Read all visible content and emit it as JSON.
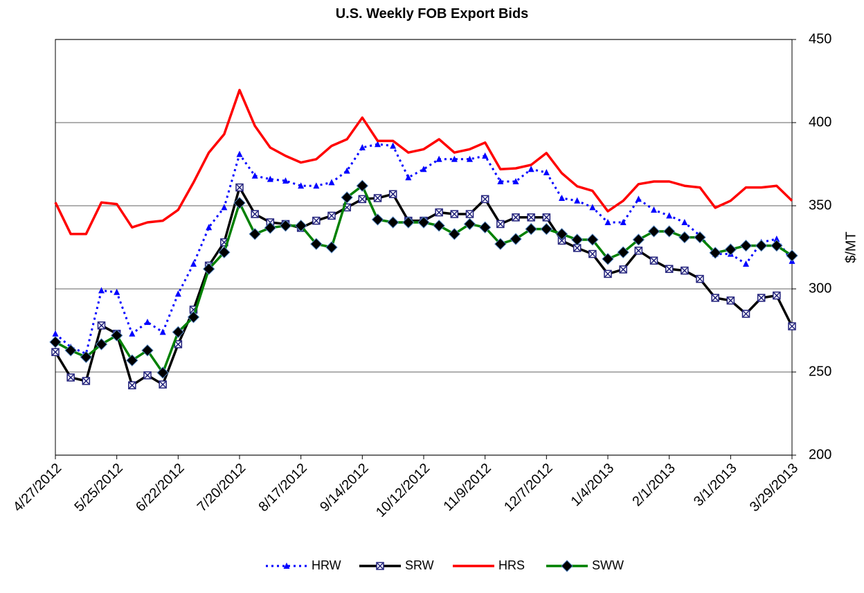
{
  "chart_data": {
    "type": "line",
    "title": "U.S. Weekly FOB Export Bids",
    "y_label": "$/MT",
    "categories": [
      "4/27/2012",
      null,
      null,
      null,
      "5/25/2012",
      null,
      null,
      null,
      "6/22/2012",
      null,
      null,
      null,
      "7/20/2012",
      null,
      null,
      null,
      "8/17/2012",
      null,
      null,
      null,
      "9/14/2012",
      null,
      null,
      null,
      "10/12/2012",
      null,
      null,
      null,
      "11/9/2012",
      null,
      null,
      null,
      "12/7/2012",
      null,
      null,
      null,
      "1/4/2013",
      null,
      null,
      null,
      "2/1/2013",
      null,
      null,
      null,
      "3/1/2013",
      null,
      null,
      null,
      "3/29/2013"
    ],
    "ylim": [
      200,
      450
    ],
    "yticks": [
      200,
      250,
      300,
      350,
      400,
      450
    ],
    "y_axis_side": "right",
    "grid": true,
    "legend": "bottom",
    "series": [
      {
        "name": "HRW",
        "color": "#0000ff",
        "dash": "dotted",
        "marker": "triangle",
        "values": [
          273,
          265,
          261,
          299,
          298,
          273,
          280,
          274,
          297,
          315,
          337,
          349,
          381,
          368,
          366,
          365,
          362,
          362,
          364,
          371,
          385,
          387,
          386,
          367,
          372,
          378,
          378,
          378,
          380,
          364.6,
          364.6,
          372,
          370,
          354.6,
          353,
          349,
          340,
          340,
          354,
          347.5,
          344,
          340,
          332,
          321,
          321,
          315,
          328,
          330,
          316.7
        ]
      },
      {
        "name": "SRW",
        "color": "#000000",
        "dash": "solid",
        "marker": "square-x",
        "values": [
          262,
          246.7,
          244.6,
          278,
          273,
          242,
          248,
          242.5,
          266.7,
          287.5,
          314,
          328,
          361,
          345,
          340,
          339,
          336.7,
          341,
          344,
          349,
          354,
          354.6,
          357,
          341,
          341,
          346,
          345,
          345,
          354,
          339,
          343,
          343,
          343,
          329,
          324.6,
          321,
          309,
          311.7,
          323,
          317,
          312,
          311,
          306,
          294.6,
          293,
          285,
          294.6,
          296,
          277.5
        ]
      },
      {
        "name": "HRS",
        "color": "#ff0000",
        "dash": "solid",
        "marker": "none",
        "values": [
          352,
          333,
          333,
          352,
          351,
          337,
          340,
          341,
          347.5,
          364,
          382,
          393,
          419.6,
          398,
          385,
          380,
          376,
          378,
          386,
          390,
          403,
          389,
          389,
          382,
          384,
          390,
          382,
          384,
          388,
          372,
          372.5,
          374.6,
          381.7,
          369.6,
          361.7,
          359,
          346.7,
          353,
          363,
          364.6,
          364.6,
          362,
          361,
          348.8,
          353,
          361,
          361,
          362,
          353
        ]
      },
      {
        "name": "SWW",
        "color": "#008000",
        "dash": "solid",
        "marker": "diamond",
        "values": [
          268,
          263,
          259,
          266.7,
          272,
          257,
          263,
          249.6,
          274,
          283,
          312,
          322,
          351.7,
          333,
          336.7,
          338,
          338,
          327,
          325,
          355,
          362,
          341.7,
          340,
          340,
          340,
          338,
          333,
          339,
          337,
          327,
          330,
          336,
          336,
          333,
          329.6,
          329.6,
          318,
          322,
          329.6,
          334.6,
          334.6,
          331,
          331,
          321.7,
          323.7,
          326,
          326,
          326,
          320
        ]
      }
    ]
  }
}
